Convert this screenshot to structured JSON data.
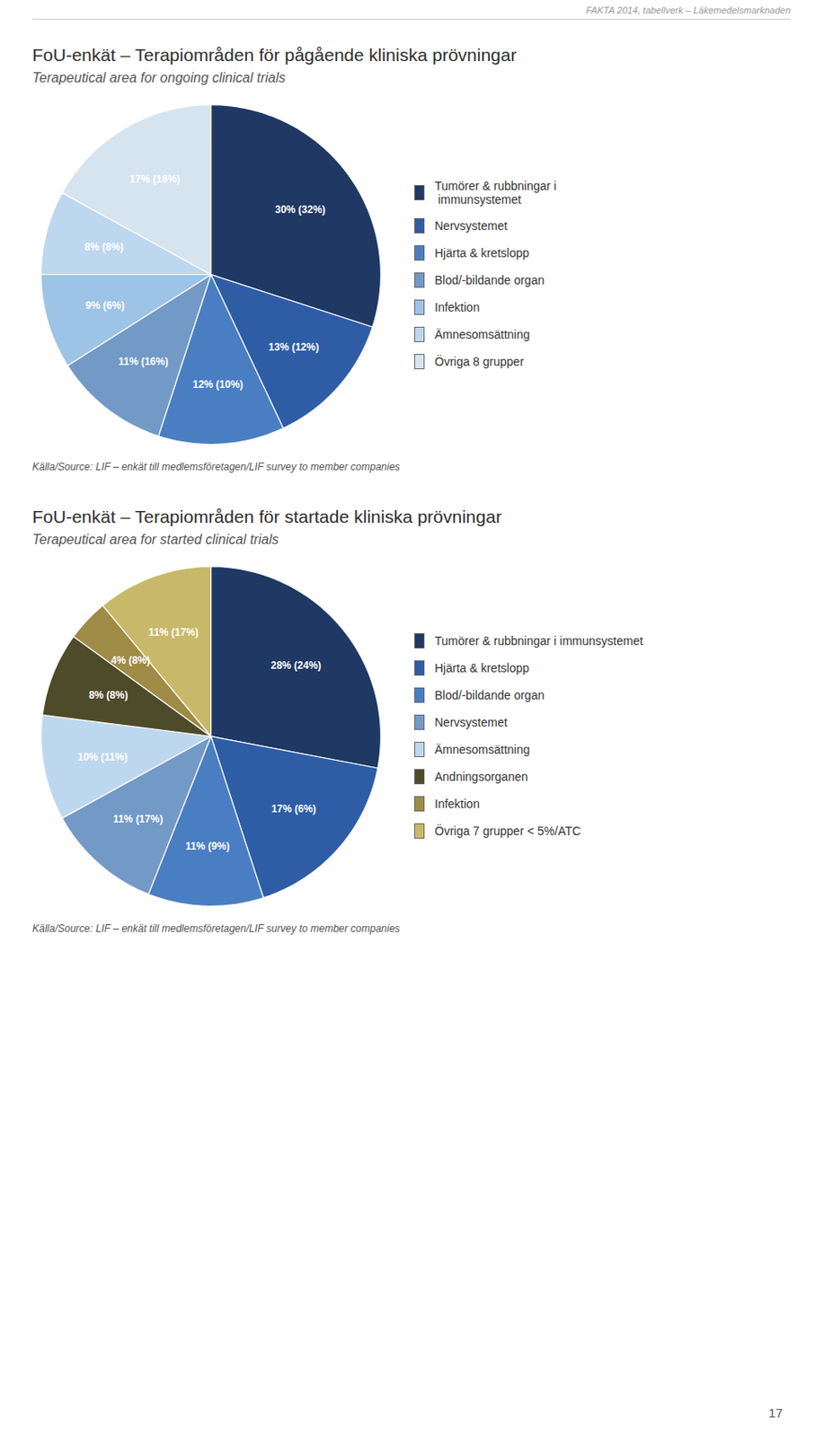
{
  "header": "FAKTA 2014, tabellverk – Läkemedelsmarknaden",
  "page_number": "17",
  "chart_data": [
    {
      "type": "pie",
      "title": "FoU-enkät – Terapiområden för pågående kliniska prövningar",
      "subtitle": "Terapeutical area for ongoing clinical trials",
      "categories": [
        "Tumörer & rubbningar i\n immunsystemet",
        "Nervsystemet",
        "Hjärta & kretslopp",
        "Blod/-bildande organ",
        "Infektion",
        "Ämnesomsättning",
        "Övriga 8 grupper"
      ],
      "values": [
        30,
        13,
        12,
        11,
        9,
        8,
        17
      ],
      "value_labels": [
        "30% (32%)",
        "13% (12%)",
        "12% (10%)",
        "11% (16%)",
        "9% (6%)",
        "8% (8%)",
        "17% (16%)"
      ],
      "colors": [
        "#1F3864",
        "#2E5DA6",
        "#4A7EC2",
        "#7399C6",
        "#9DC3E6",
        "#BDD7EE",
        "#D6E4F0"
      ],
      "data_labels": true,
      "legend": "right",
      "source": "Källa/Source: LIF – enkät till medlemsföretagen/LIF survey to member companies"
    },
    {
      "type": "pie",
      "title": "FoU-enkät – Terapiområden för startade kliniska prövningar",
      "subtitle": "Terapeutical area for started clinical trials",
      "categories": [
        "Tumörer & rubbningar i immunsystemet",
        "Hjärta & kretslopp",
        "Blod/-bildande organ",
        "Nervsystemet",
        "Ämnesomsättning",
        "Andningsorganen",
        "Infektion",
        "Övriga 7 grupper < 5%/ATC"
      ],
      "values": [
        28,
        17,
        11,
        11,
        10,
        8,
        4,
        11
      ],
      "value_labels": [
        "28% (24%)",
        "17% (6%)",
        "11% (9%)",
        "11% (17%)",
        "10% (11%)",
        "8% (8%)",
        "4% (8%)",
        "11% (17%)"
      ],
      "colors": [
        "#1F3864",
        "#2E5DA6",
        "#4A7EC2",
        "#7399C6",
        "#BDD7EE",
        "#4D4B2A",
        "#9E8B45",
        "#C8B96A"
      ],
      "data_labels": true,
      "legend": "right",
      "source": "Källa/Source: LIF – enkät till medlemsföretagen/LIF survey to member companies"
    }
  ]
}
